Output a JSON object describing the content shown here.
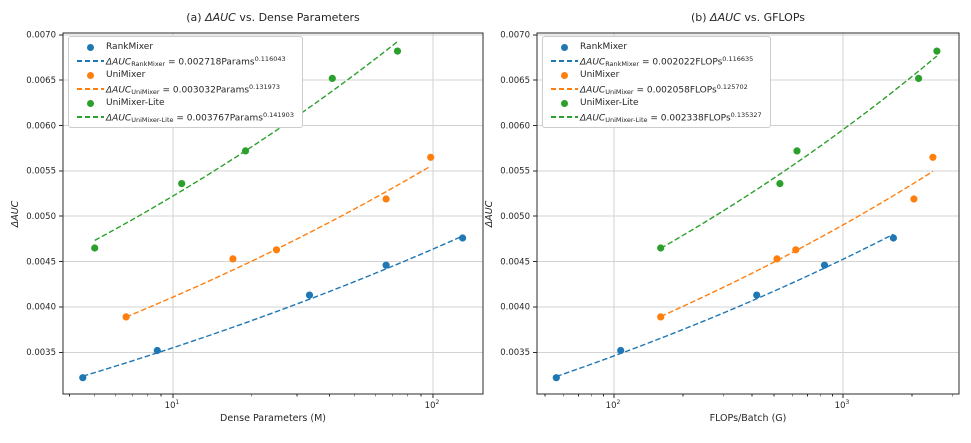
{
  "figure": {
    "background": "#ffffff",
    "colors": {
      "rankmixer": "#1f77b4",
      "unimixer": "#ff7f0e",
      "unimixer_lite": "#2ca02c",
      "grid": "#d3d3d3",
      "spine": "#2b2b2b",
      "text": "#262626"
    }
  },
  "chart_data": [
    {
      "type": "scatter",
      "panel": "a",
      "title": "(a) ΔAUC vs. Dense Parameters",
      "title_parts": {
        "prefix": "(a) ",
        "math": "ΔAUC",
        "suffix": " vs. Dense Parameters"
      },
      "xlabel": "Dense Parameters (M)",
      "ylabel": "ΔAUC",
      "xscale": "log",
      "xlim": [
        3.775,
        155.7
      ],
      "ylim": [
        0.00304,
        0.00702
      ],
      "yticks": [
        0.0035,
        0.004,
        0.0045,
        0.005,
        0.0055,
        0.006,
        0.0065,
        0.007
      ],
      "xticks_major": [
        10,
        100
      ],
      "xticks_minor": [
        4,
        5,
        6,
        7,
        8,
        9,
        20,
        30,
        40,
        50,
        60,
        70,
        80,
        90
      ],
      "grid": true,
      "legend_position": "upper left",
      "series": [
        {
          "name": "RankMixer",
          "color": "#1f77b4",
          "x": [
            4.5,
            8.7,
            33.5,
            66,
            130
          ],
          "y": [
            0.00322,
            0.00352,
            0.00413,
            0.00446,
            0.00476
          ],
          "fit": {
            "coeff": 0.002718,
            "exponent": 0.116043,
            "variable": "Params"
          },
          "legend_eq": {
            "lhs": "ΔAUC",
            "sub": "RankMixer",
            "mid": " = 0.002718Params",
            "sup": "0.116043"
          }
        },
        {
          "name": "UniMixer",
          "color": "#ff7f0e",
          "x": [
            6.6,
            17,
            25,
            66,
            98
          ],
          "y": [
            0.00389,
            0.00453,
            0.00463,
            0.00519,
            0.00565
          ],
          "fit": {
            "coeff": 0.003032,
            "exponent": 0.131973,
            "variable": "Params"
          },
          "legend_eq": {
            "lhs": "ΔAUC",
            "sub": "UniMixer",
            "mid": " = 0.003032Params",
            "sup": "0.131973"
          }
        },
        {
          "name": "UniMixer-Lite",
          "color": "#2ca02c",
          "x": [
            5.0,
            10.8,
            19,
            41,
            73
          ],
          "y": [
            0.00465,
            0.00536,
            0.00572,
            0.00652,
            0.00682
          ],
          "fit": {
            "coeff": 0.003767,
            "exponent": 0.141903,
            "variable": "Params"
          },
          "legend_eq": {
            "lhs": "ΔAUC",
            "sub": "UniMixer-Lite",
            "mid": " = 0.003767Params",
            "sup": "0.141903"
          }
        }
      ]
    },
    {
      "type": "scatter",
      "panel": "b",
      "title": "(b) ΔAUC vs. GFLOPs",
      "title_parts": {
        "prefix": "(b) ",
        "math": "ΔAUC",
        "suffix": " vs. GFLOPs"
      },
      "xlabel": "FLOPs/Batch (G)",
      "ylabel": "ΔAUC",
      "xscale": "log",
      "xlim": [
        46.1,
        3211
      ],
      "ylim": [
        0.00304,
        0.00702
      ],
      "yticks": [
        0.0035,
        0.004,
        0.0045,
        0.005,
        0.0055,
        0.006,
        0.0065,
        0.007
      ],
      "xticks_major": [
        100,
        1000
      ],
      "xticks_minor": [
        50,
        60,
        70,
        80,
        90,
        200,
        300,
        400,
        500,
        600,
        700,
        800,
        900,
        2000,
        3000
      ],
      "grid": true,
      "legend_position": "upper left",
      "series": [
        {
          "name": "RankMixer",
          "color": "#1f77b4",
          "x": [
            56,
            107,
            420,
            830,
            1660
          ],
          "y": [
            0.00322,
            0.00352,
            0.00413,
            0.00446,
            0.00476
          ],
          "fit": {
            "coeff": 0.002022,
            "exponent": 0.116635,
            "variable": "FLOPs"
          },
          "legend_eq": {
            "lhs": "ΔAUC",
            "sub": "RankMixer",
            "mid": " = 0.002022FLOPs",
            "sup": "0.116635"
          }
        },
        {
          "name": "UniMixer",
          "color": "#ff7f0e",
          "x": [
            160,
            515,
            622,
            2040,
            2470
          ],
          "y": [
            0.00389,
            0.00453,
            0.00463,
            0.00519,
            0.00565
          ],
          "fit": {
            "coeff": 0.002058,
            "exponent": 0.125702,
            "variable": "FLOPs"
          },
          "legend_eq": {
            "lhs": "ΔAUC",
            "sub": "UniMixer",
            "mid": " = 0.002058FLOPs",
            "sup": "0.125702"
          }
        },
        {
          "name": "UniMixer-Lite",
          "color": "#2ca02c",
          "x": [
            160,
            530,
            630,
            2140,
            2570
          ],
          "y": [
            0.00465,
            0.00536,
            0.00572,
            0.00652,
            0.00682
          ],
          "fit": {
            "coeff": 0.002338,
            "exponent": 0.135327,
            "variable": "FLOPs"
          },
          "legend_eq": {
            "lhs": "ΔAUC",
            "sub": "UniMixer-Lite",
            "mid": " = 0.002338FLOPs",
            "sup": "0.135327"
          }
        }
      ]
    }
  ]
}
